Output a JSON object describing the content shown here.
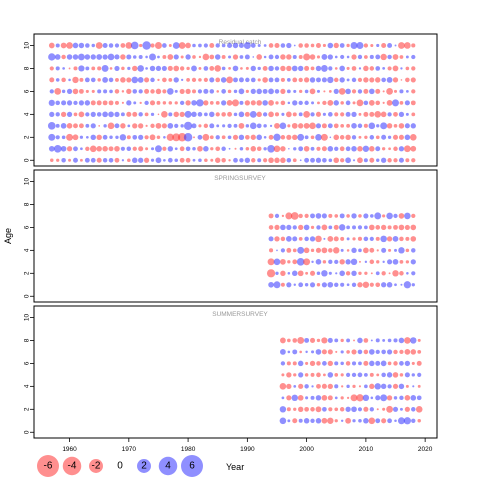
{
  "chart_data": {
    "type": "scatter",
    "subtype": "bubble residual plot",
    "xlabel": "Year",
    "ylabel": "Age",
    "xlim": [
      1954,
      2022
    ],
    "x_ticks": [
      1960,
      1970,
      1980,
      1990,
      2000,
      2010,
      2020
    ],
    "ylim": [
      -0.5,
      11
    ],
    "y_ticks": [
      0,
      2,
      4,
      6,
      8,
      10
    ],
    "colors": {
      "positive": "#3333ff",
      "negative": "#ff3333"
    },
    "legend": {
      "values": [
        -6,
        -4,
        -2,
        0,
        2,
        4,
        6
      ],
      "labels": [
        "-6",
        "-4",
        "-2",
        "0",
        "2",
        "4",
        "6"
      ],
      "placement": "bottom-left"
    },
    "panels": [
      {
        "title": "Residual catch",
        "years": [
          1957,
          2018
        ],
        "ages": [
          0,
          10
        ],
        "residuals": [
          [
            1957,
            9,
            1.8
          ],
          [
            1957,
            5,
            1.2
          ],
          [
            1957,
            3,
            2.0
          ],
          [
            1957,
            2,
            1.6
          ],
          [
            1958,
            1,
            2.0
          ],
          [
            1958,
            6,
            -1.5
          ],
          [
            1959,
            10,
            -1.0
          ],
          [
            1960,
            10,
            -1.4
          ],
          [
            1960,
            2,
            -1.6
          ],
          [
            1961,
            7,
            -1.3
          ],
          [
            1962,
            9,
            1.5
          ],
          [
            1962,
            8,
            1.2
          ],
          [
            1964,
            1,
            -1.4
          ],
          [
            1965,
            10,
            -1.5
          ],
          [
            1966,
            8,
            1.6
          ],
          [
            1967,
            9,
            1.4
          ],
          [
            1967,
            3,
            -1.4
          ],
          [
            1969,
            2,
            1.3
          ],
          [
            1970,
            10,
            -1.4
          ],
          [
            1971,
            10,
            2.0
          ],
          [
            1971,
            7,
            1.4
          ],
          [
            1972,
            8,
            1.4
          ],
          [
            1973,
            10,
            2.6
          ],
          [
            1974,
            9,
            1.6
          ],
          [
            1975,
            10,
            -1.6
          ],
          [
            1975,
            1,
            1.6
          ],
          [
            1976,
            4,
            -1.4
          ],
          [
            1977,
            6,
            1.4
          ],
          [
            1977,
            2,
            -1.8
          ],
          [
            1978,
            10,
            1.5
          ],
          [
            1978,
            2,
            -2.2
          ],
          [
            1979,
            10,
            -1.5
          ],
          [
            1979,
            2,
            -2.6
          ],
          [
            1980,
            3,
            2.4
          ],
          [
            1980,
            2,
            2.6
          ],
          [
            1980,
            4,
            1.6
          ],
          [
            1982,
            5,
            1.8
          ],
          [
            1983,
            9,
            -1.4
          ],
          [
            1983,
            2,
            -1.5
          ],
          [
            1985,
            8,
            -1.4
          ],
          [
            1987,
            7,
            -1.5
          ],
          [
            1988,
            5,
            -1.6
          ],
          [
            1990,
            10,
            1.6
          ],
          [
            1991,
            4,
            1.5
          ],
          [
            1991,
            3,
            1.4
          ],
          [
            1994,
            1,
            2.0
          ],
          [
            1995,
            1,
            -1.4
          ],
          [
            1995,
            2,
            1.8
          ],
          [
            1996,
            3,
            1.4
          ],
          [
            1999,
            2,
            1.5
          ],
          [
            2000,
            9,
            -1.6
          ],
          [
            2000,
            4,
            -1.5
          ],
          [
            2001,
            3,
            -1.4
          ],
          [
            2002,
            2,
            1.4
          ],
          [
            2003,
            2,
            -1.6
          ],
          [
            2003,
            8,
            1.5
          ],
          [
            2004,
            7,
            1.3
          ],
          [
            2006,
            6,
            -1.4
          ],
          [
            2008,
            10,
            1.6
          ],
          [
            2009,
            10,
            1.6
          ],
          [
            2009,
            5,
            -1.5
          ],
          [
            2010,
            1,
            1.3
          ],
          [
            2011,
            3,
            1.4
          ],
          [
            2012,
            4,
            -1.4
          ],
          [
            2013,
            3,
            1.6
          ],
          [
            2013,
            9,
            -1.3
          ],
          [
            2014,
            6,
            -1.5
          ],
          [
            2015,
            5,
            1.6
          ],
          [
            2016,
            10,
            -1.5
          ],
          [
            2017,
            10,
            -1.4
          ],
          [
            2017,
            1,
            -1.5
          ],
          [
            2018,
            2,
            -1.4
          ]
        ]
      },
      {
        "title": "SPRINGSURVEY",
        "years": [
          1994,
          2018
        ],
        "ages": [
          1,
          7
        ],
        "residuals": [
          [
            1994,
            2,
            -2.4
          ],
          [
            1994,
            3,
            -1.6
          ],
          [
            1995,
            1,
            1.6
          ],
          [
            1995,
            3,
            1.4
          ],
          [
            1997,
            7,
            -1.6
          ],
          [
            1998,
            7,
            -2.0
          ],
          [
            1999,
            4,
            1.6
          ],
          [
            1999,
            3,
            2.0
          ],
          [
            2000,
            3,
            -1.6
          ],
          [
            2002,
            5,
            -1.4
          ],
          [
            2003,
            2,
            1.3
          ],
          [
            2005,
            4,
            -1.3
          ],
          [
            2006,
            6,
            1.3
          ],
          [
            2008,
            3,
            1.3
          ],
          [
            2010,
            1,
            -1.3
          ],
          [
            2012,
            7,
            1.6
          ],
          [
            2013,
            5,
            1.4
          ],
          [
            2014,
            7,
            1.4
          ],
          [
            2015,
            2,
            -1.3
          ],
          [
            2016,
            4,
            1.3
          ],
          [
            2017,
            1,
            1.8
          ],
          [
            2017,
            7,
            1.4
          ]
        ]
      },
      {
        "title": "SUMMERSURVEY",
        "years": [
          1996,
          2019
        ],
        "ages": [
          1,
          8
        ],
        "residuals": [
          [
            1996,
            4,
            -1.4
          ],
          [
            1996,
            2,
            1.3
          ],
          [
            1996,
            1,
            1.4
          ],
          [
            1998,
            3,
            1.3
          ],
          [
            1999,
            8,
            -1.6
          ],
          [
            2003,
            8,
            -1.2
          ],
          [
            2004,
            1,
            -1.3
          ],
          [
            2008,
            3,
            -1.6
          ],
          [
            2009,
            3,
            -1.8
          ],
          [
            2010,
            3,
            1.3
          ],
          [
            2011,
            1,
            -1.4
          ],
          [
            2012,
            4,
            1.3
          ],
          [
            2013,
            3,
            1.6
          ],
          [
            2014,
            2,
            -1.5
          ],
          [
            2016,
            1,
            1.6
          ],
          [
            2017,
            1,
            1.8
          ],
          [
            2017,
            8,
            -1.4
          ],
          [
            2018,
            8,
            1.3
          ],
          [
            2019,
            2,
            -1.4
          ]
        ]
      }
    ]
  }
}
